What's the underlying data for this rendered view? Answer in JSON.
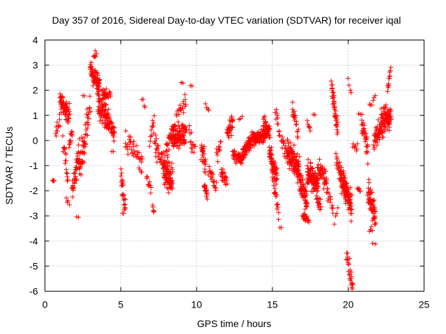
{
  "chart_data": {
    "type": "scatter",
    "title": "Day 357 of 2016, Sidereal Day-to-day VTEC variation (SDTVAR) for receiver iqal",
    "xlabel": "GPS time / hours",
    "ylabel": "SDTVAR / TECUs",
    "xlim": [
      0,
      25
    ],
    "ylim": [
      -6,
      4
    ],
    "xticks": [
      0,
      5,
      10,
      15,
      20,
      25
    ],
    "yticks": [
      -6,
      -5,
      -4,
      -3,
      -2,
      -1,
      0,
      1,
      2,
      3,
      4
    ],
    "grid": true,
    "marker": "+",
    "color": "#ff0000",
    "segments": [
      {
        "x0": 0.5,
        "x1": 0.6,
        "c0": -1.6,
        "c1": -1.6,
        "spread": 0.05,
        "n": 4
      },
      {
        "x0": 0.7,
        "x1": 1.0,
        "c0": 0.2,
        "c1": 0.8,
        "spread": 0.5,
        "n": 12
      },
      {
        "x0": 1.0,
        "x1": 1.6,
        "c0": 1.6,
        "c1": 1.0,
        "spread": 0.6,
        "n": 70
      },
      {
        "x0": 1.2,
        "x1": 1.5,
        "c0": 0.0,
        "c1": -1.5,
        "spread": 0.6,
        "n": 18
      },
      {
        "x0": 1.4,
        "x1": 1.6,
        "c0": -2.3,
        "c1": -2.6,
        "spread": 0.2,
        "n": 4
      },
      {
        "x0": 1.6,
        "x1": 1.8,
        "c0": -0.3,
        "c1": 0.5,
        "spread": 0.6,
        "n": 12
      },
      {
        "x0": 1.8,
        "x1": 2.3,
        "c0": -2.0,
        "c1": -0.5,
        "spread": 0.8,
        "n": 45
      },
      {
        "x0": 2.1,
        "x1": 2.2,
        "c0": -3.05,
        "c1": -3.05,
        "spread": 0.05,
        "n": 2
      },
      {
        "x0": 2.3,
        "x1": 2.8,
        "c0": -1.0,
        "c1": 0.5,
        "spread": 1.0,
        "n": 40
      },
      {
        "x0": 2.5,
        "x1": 2.6,
        "c0": 1.8,
        "c1": 1.8,
        "spread": 0.1,
        "n": 2
      },
      {
        "x0": 2.8,
        "x1": 3.0,
        "c0": 0.5,
        "c1": 1.5,
        "spread": 0.6,
        "n": 10
      },
      {
        "x0": 3.0,
        "x1": 3.6,
        "c0": 2.8,
        "c1": 2.2,
        "spread": 0.6,
        "n": 70
      },
      {
        "x0": 3.2,
        "x1": 3.4,
        "c0": 3.3,
        "c1": 3.5,
        "spread": 0.2,
        "n": 6
      },
      {
        "x0": 3.5,
        "x1": 4.2,
        "c0": 1.7,
        "c1": 0.8,
        "spread": 0.9,
        "n": 90
      },
      {
        "x0": 3.8,
        "x1": 4.3,
        "c0": 2.0,
        "c1": 1.8,
        "spread": 0.3,
        "n": 20
      },
      {
        "x0": 4.2,
        "x1": 4.6,
        "c0": 0.8,
        "c1": 0.2,
        "spread": 0.5,
        "n": 30
      },
      {
        "x0": 4.4,
        "x1": 4.5,
        "c0": -0.4,
        "c1": -0.4,
        "spread": 0.1,
        "n": 2
      },
      {
        "x0": 5.0,
        "x1": 5.3,
        "c0": -1.4,
        "c1": -2.6,
        "spread": 0.6,
        "n": 25
      },
      {
        "x0": 5.1,
        "x1": 5.2,
        "c0": -2.9,
        "c1": -2.9,
        "spread": 0.05,
        "n": 2
      },
      {
        "x0": 5.3,
        "x1": 5.8,
        "c0": 0.0,
        "c1": -0.3,
        "spread": 0.6,
        "n": 18
      },
      {
        "x0": 5.8,
        "x1": 6.4,
        "c0": -0.3,
        "c1": -0.8,
        "spread": 0.5,
        "n": 18
      },
      {
        "x0": 6.2,
        "x1": 6.4,
        "c0": -1.1,
        "c1": -1.3,
        "spread": 0.2,
        "n": 4
      },
      {
        "x0": 6.4,
        "x1": 6.6,
        "c0": 1.7,
        "c1": 1.3,
        "spread": 0.2,
        "n": 4
      },
      {
        "x0": 6.7,
        "x1": 7.0,
        "c0": -1.5,
        "c1": -2.0,
        "spread": 0.5,
        "n": 10
      },
      {
        "x0": 6.9,
        "x1": 7.2,
        "c0": 0.0,
        "c1": 0.8,
        "spread": 0.5,
        "n": 12
      },
      {
        "x0": 7.1,
        "x1": 7.2,
        "c0": -2.7,
        "c1": -2.9,
        "spread": 0.2,
        "n": 5
      },
      {
        "x0": 7.2,
        "x1": 7.8,
        "c0": -0.2,
        "c1": -0.8,
        "spread": 0.7,
        "n": 30
      },
      {
        "x0": 7.8,
        "x1": 8.4,
        "c0": -1.2,
        "c1": -1.6,
        "spread": 0.8,
        "n": 90
      },
      {
        "x0": 8.0,
        "x1": 8.6,
        "c0": -0.4,
        "c1": 0.6,
        "spread": 0.6,
        "n": 40
      },
      {
        "x0": 8.4,
        "x1": 9.3,
        "c0": 0.0,
        "c1": 0.3,
        "spread": 0.6,
        "n": 90
      },
      {
        "x0": 8.7,
        "x1": 9.3,
        "c0": 1.0,
        "c1": 1.6,
        "spread": 0.5,
        "n": 20
      },
      {
        "x0": 9.0,
        "x1": 9.1,
        "c0": 2.3,
        "c1": 2.3,
        "spread": 0.05,
        "n": 2
      },
      {
        "x0": 9.6,
        "x1": 9.7,
        "c0": 2.2,
        "c1": 2.2,
        "spread": 0.05,
        "n": 2
      },
      {
        "x0": 9.5,
        "x1": 9.9,
        "c0": 0.2,
        "c1": -0.5,
        "spread": 0.6,
        "n": 15
      },
      {
        "x0": 10.3,
        "x1": 10.6,
        "c0": -0.2,
        "c1": -1.0,
        "spread": 0.8,
        "n": 25
      },
      {
        "x0": 10.5,
        "x1": 10.7,
        "c0": -1.8,
        "c1": -2.2,
        "spread": 0.3,
        "n": 20
      },
      {
        "x0": 10.6,
        "x1": 10.8,
        "c0": 1.4,
        "c1": 1.2,
        "spread": 0.2,
        "n": 4
      },
      {
        "x0": 10.8,
        "x1": 11.3,
        "c0": -1.2,
        "c1": -1.8,
        "spread": 0.5,
        "n": 20
      },
      {
        "x0": 11.3,
        "x1": 11.6,
        "c0": -0.6,
        "c1": -0.2,
        "spread": 0.5,
        "n": 12
      },
      {
        "x0": 11.6,
        "x1": 12.0,
        "c0": -1.3,
        "c1": -1.6,
        "spread": 0.5,
        "n": 25
      },
      {
        "x0": 12.0,
        "x1": 12.4,
        "c0": 0.2,
        "c1": 0.8,
        "spread": 0.5,
        "n": 30
      },
      {
        "x0": 12.4,
        "x1": 13.0,
        "c0": -0.5,
        "c1": -0.8,
        "spread": 0.4,
        "n": 45
      },
      {
        "x0": 12.8,
        "x1": 13.0,
        "c0": 0.8,
        "c1": 0.9,
        "spread": 0.1,
        "n": 3
      },
      {
        "x0": 13.0,
        "x1": 13.8,
        "c0": -0.6,
        "c1": 0.2,
        "spread": 0.4,
        "n": 90
      },
      {
        "x0": 13.8,
        "x1": 14.8,
        "c0": 0.0,
        "c1": 0.4,
        "spread": 0.4,
        "n": 130
      },
      {
        "x0": 14.4,
        "x1": 14.8,
        "c0": 0.8,
        "c1": 0.2,
        "spread": 0.4,
        "n": 20
      },
      {
        "x0": 14.8,
        "x1": 15.3,
        "c0": -0.5,
        "c1": -1.5,
        "spread": 0.6,
        "n": 60
      },
      {
        "x0": 15.0,
        "x1": 15.4,
        "c0": -1.5,
        "c1": -2.7,
        "spread": 0.5,
        "n": 20
      },
      {
        "x0": 15.2,
        "x1": 15.5,
        "c0": 1.3,
        "c1": 0.3,
        "spread": 0.5,
        "n": 12
      },
      {
        "x0": 15.4,
        "x1": 15.6,
        "c0": -3.2,
        "c1": -3.5,
        "spread": 0.2,
        "n": 3
      },
      {
        "x0": 15.6,
        "x1": 16.0,
        "c0": -0.1,
        "c1": -0.5,
        "spread": 0.6,
        "n": 20
      },
      {
        "x0": 16.0,
        "x1": 16.8,
        "c0": -0.5,
        "c1": -1.2,
        "spread": 0.9,
        "n": 110
      },
      {
        "x0": 16.3,
        "x1": 16.7,
        "c0": 1.3,
        "c1": 0.3,
        "spread": 0.4,
        "n": 20
      },
      {
        "x0": 16.8,
        "x1": 17.3,
        "c0": -1.5,
        "c1": -2.5,
        "spread": 0.7,
        "n": 60
      },
      {
        "x0": 17.0,
        "x1": 17.4,
        "c0": -3.0,
        "c1": -3.2,
        "spread": 0.2,
        "n": 25
      },
      {
        "x0": 17.3,
        "x1": 18.0,
        "c0": -1.3,
        "c1": -1.7,
        "spread": 0.7,
        "n": 100
      },
      {
        "x0": 17.3,
        "x1": 17.5,
        "c0": 0.8,
        "c1": 0.4,
        "spread": 0.3,
        "n": 6
      },
      {
        "x0": 17.7,
        "x1": 17.8,
        "c0": 1.0,
        "c1": 1.0,
        "spread": 0.1,
        "n": 2
      },
      {
        "x0": 17.9,
        "x1": 18.2,
        "c0": -2.2,
        "c1": -2.6,
        "spread": 0.4,
        "n": 20
      },
      {
        "x0": 18.0,
        "x1": 18.6,
        "c0": -1.0,
        "c1": -1.7,
        "spread": 0.5,
        "n": 40
      },
      {
        "x0": 18.6,
        "x1": 19.0,
        "c0": -2.0,
        "c1": -2.8,
        "spread": 0.4,
        "n": 15
      },
      {
        "x0": 18.9,
        "x1": 19.3,
        "c0": 2.2,
        "c1": 0.4,
        "spread": 0.5,
        "n": 40
      },
      {
        "x0": 19.2,
        "x1": 19.5,
        "c0": -0.8,
        "c1": -1.4,
        "spread": 0.5,
        "n": 20
      },
      {
        "x0": 19.1,
        "x1": 19.3,
        "c0": -3.2,
        "c1": -2.6,
        "spread": 0.3,
        "n": 4
      },
      {
        "x0": 19.5,
        "x1": 20.2,
        "c0": -1.4,
        "c1": -2.6,
        "spread": 0.7,
        "n": 110
      },
      {
        "x0": 19.9,
        "x1": 20.3,
        "c0": -4.6,
        "c1": -5.9,
        "spread": 0.5,
        "n": 25
      },
      {
        "x0": 20.0,
        "x1": 20.2,
        "c0": 2.5,
        "c1": 1.8,
        "spread": 0.3,
        "n": 4
      },
      {
        "x0": 20.3,
        "x1": 20.6,
        "c0": -0.2,
        "c1": -0.3,
        "spread": 0.3,
        "n": 8
      },
      {
        "x0": 20.6,
        "x1": 20.8,
        "c0": -1.9,
        "c1": -2.0,
        "spread": 0.1,
        "n": 6
      },
      {
        "x0": 20.7,
        "x1": 20.9,
        "c0": 1.1,
        "c1": 1.0,
        "spread": 0.1,
        "n": 3
      },
      {
        "x0": 20.9,
        "x1": 21.3,
        "c0": 0.8,
        "c1": -0.5,
        "spread": 0.7,
        "n": 30
      },
      {
        "x0": 21.3,
        "x1": 21.8,
        "c0": -2.0,
        "c1": -3.1,
        "spread": 0.8,
        "n": 60
      },
      {
        "x0": 21.4,
        "x1": 21.6,
        "c0": -3.5,
        "c1": -3.6,
        "spread": 0.2,
        "n": 4
      },
      {
        "x0": 21.6,
        "x1": 21.8,
        "c0": -4.1,
        "c1": -4.1,
        "spread": 0.05,
        "n": 2
      },
      {
        "x0": 21.4,
        "x1": 21.8,
        "c0": 1.3,
        "c1": 1.8,
        "spread": 0.3,
        "n": 6
      },
      {
        "x0": 21.7,
        "x1": 22.2,
        "c0": 0.0,
        "c1": 0.6,
        "spread": 0.7,
        "n": 50
      },
      {
        "x0": 22.2,
        "x1": 22.8,
        "c0": 0.6,
        "c1": 1.0,
        "spread": 0.8,
        "n": 80
      },
      {
        "x0": 22.6,
        "x1": 22.8,
        "c0": 2.0,
        "c1": 2.8,
        "spread": 0.3,
        "n": 12
      }
    ]
  }
}
